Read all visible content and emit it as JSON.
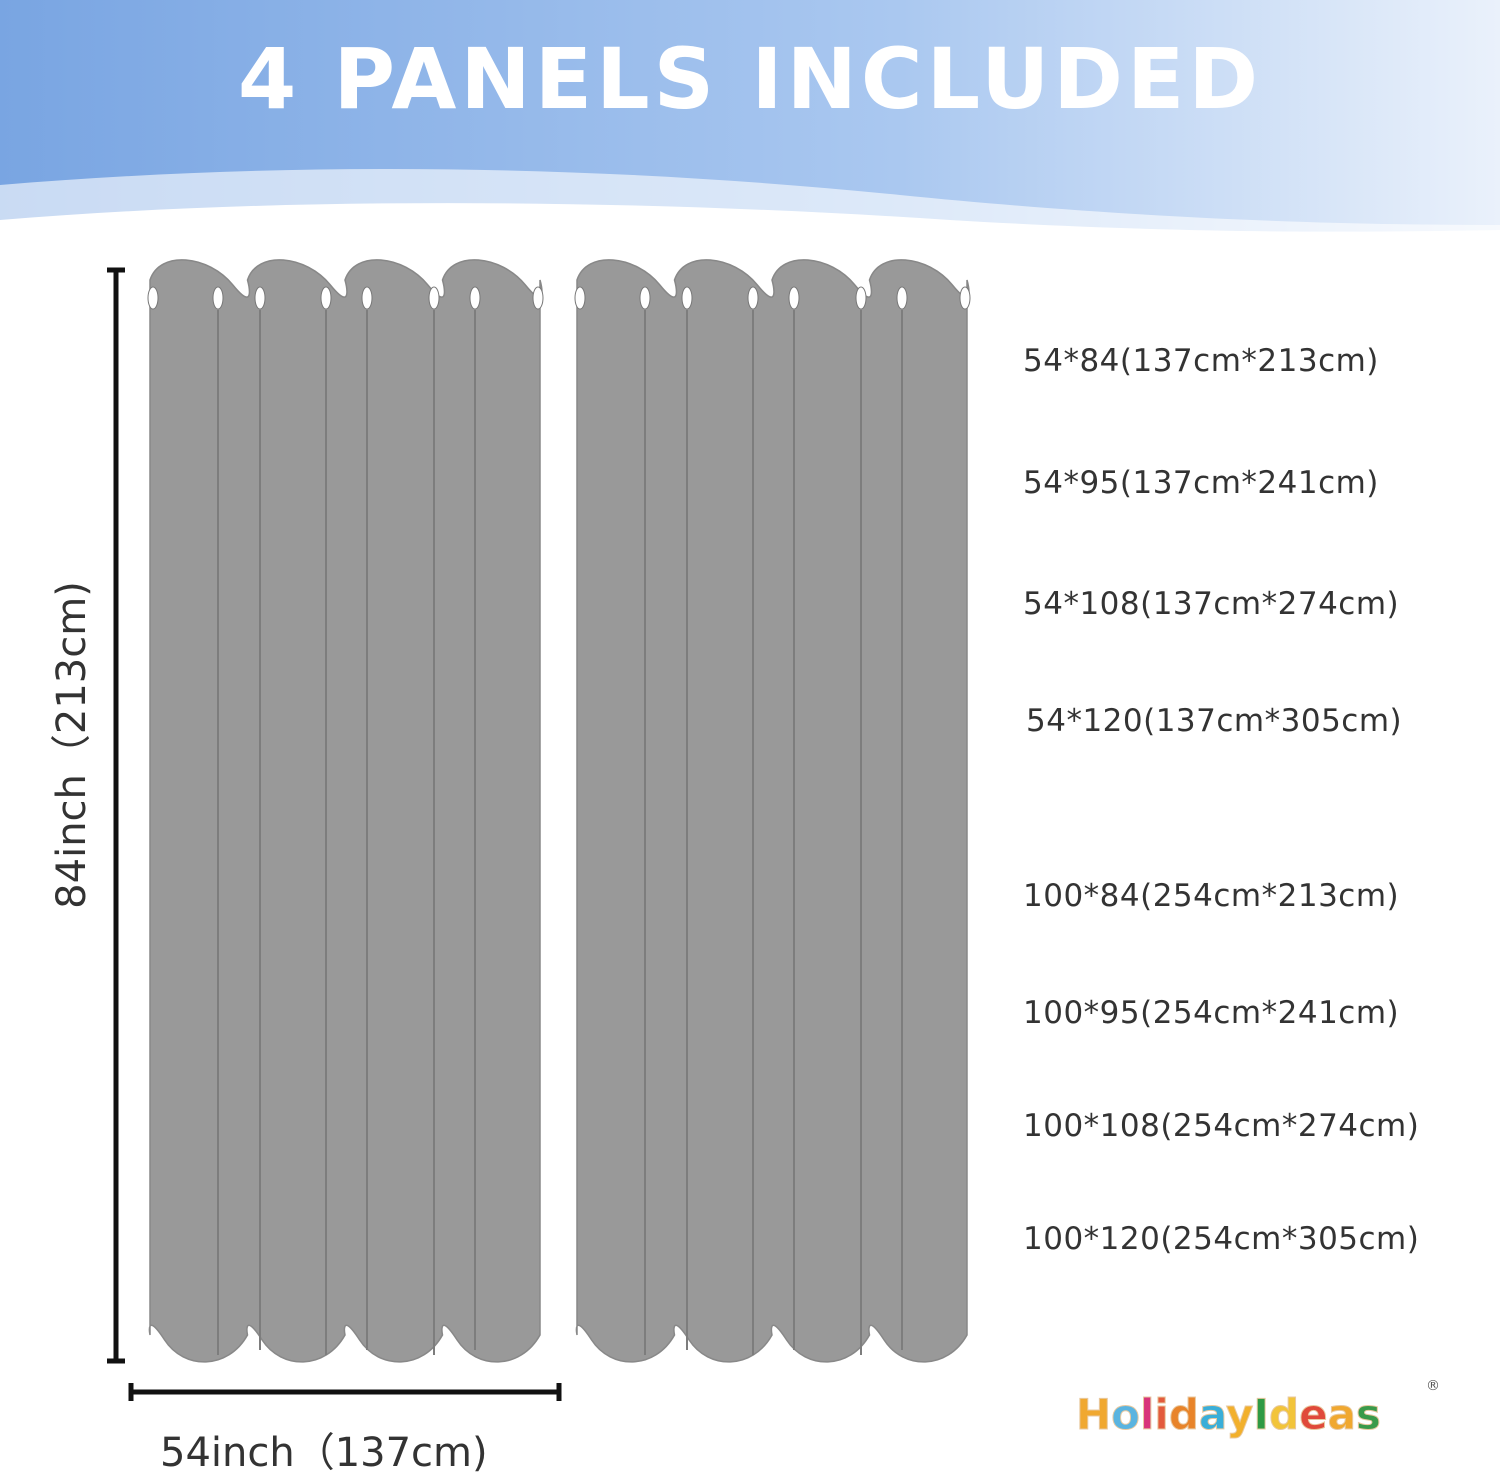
{
  "header": {
    "title": "4 PANELS INCLUDED"
  },
  "colors": {
    "banner_left": "#79a5e2",
    "banner_right": "#eaf1fb",
    "curtain": "#999999",
    "text": "#333333"
  },
  "dimensions": {
    "height_label": "84inch（213cm)",
    "width_label": "54inch（137cm)"
  },
  "sizes": [
    "54*84(137cm*213cm)",
    "54*95(137cm*241cm)",
    "54*108(137cm*274cm)",
    "54*120(137cm*305cm)",
    "100*84(254cm*213cm)",
    "100*95(254cm*241cm)",
    "100*108(254cm*274cm)",
    "100*120(254cm*305cm)"
  ],
  "brand": {
    "logo_text": "HolidayIdeas",
    "registered": "®"
  }
}
